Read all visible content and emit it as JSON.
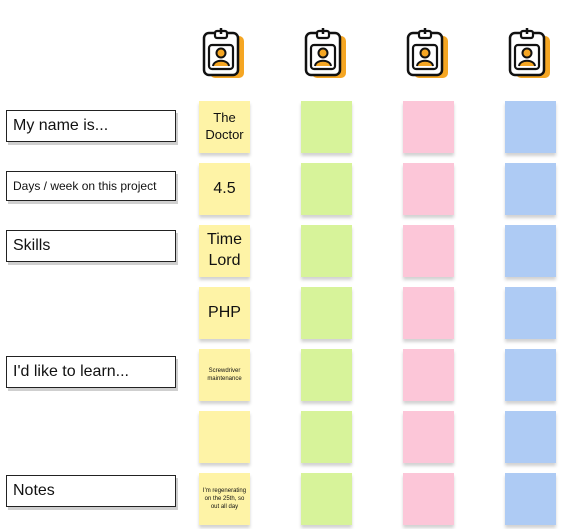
{
  "labels": {
    "name": "My name is...",
    "days": "Days / week on this project",
    "skills": "Skills",
    "learn": "I'd like to learn...",
    "notes": "Notes"
  },
  "colors": {
    "yellow": "#fef3a6",
    "green": "#d7f39a",
    "pink": "#fcc6d8",
    "blue": "#aecbf4",
    "badge_accent": "#f5a623"
  },
  "badge_icon": "id-badge-person-icon",
  "notes": {
    "name": "The Doctor",
    "days": "4.5",
    "skill_1": "Time Lord",
    "skill_2": "PHP",
    "learn": "Screwdriver maintenance",
    "extra": "",
    "notes": "I'm regenerating on the 25th, so out all day"
  }
}
